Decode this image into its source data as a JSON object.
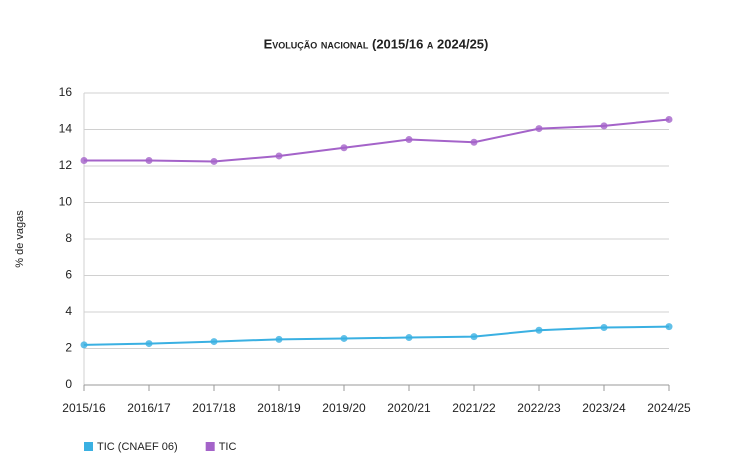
{
  "chart_data": {
    "type": "line",
    "title": "Evolução nacional (2015/16 a 2024/25)",
    "y_label": "% de vagas",
    "categories": [
      "2015/16",
      "2016/17",
      "2017/18",
      "2018/19",
      "2019/20",
      "2020/21",
      "2021/22",
      "2022/23",
      "2023/24",
      "2024/25"
    ],
    "series": [
      {
        "name": "TIC (CNAEF 06)",
        "color": "#3ab0e2",
        "values": [
          2.2,
          2.27,
          2.38,
          2.5,
          2.55,
          2.6,
          2.65,
          3.0,
          3.15,
          3.2
        ]
      },
      {
        "name": "TIC",
        "color": "#a463c9",
        "values": [
          12.3,
          12.3,
          12.25,
          12.55,
          13.0,
          13.45,
          13.3,
          14.05,
          14.2,
          14.55
        ]
      }
    ],
    "ylim": [
      0,
      16
    ],
    "yticks": [
      0,
      2,
      4,
      6,
      8,
      10,
      12,
      14,
      16
    ],
    "grid": true
  }
}
